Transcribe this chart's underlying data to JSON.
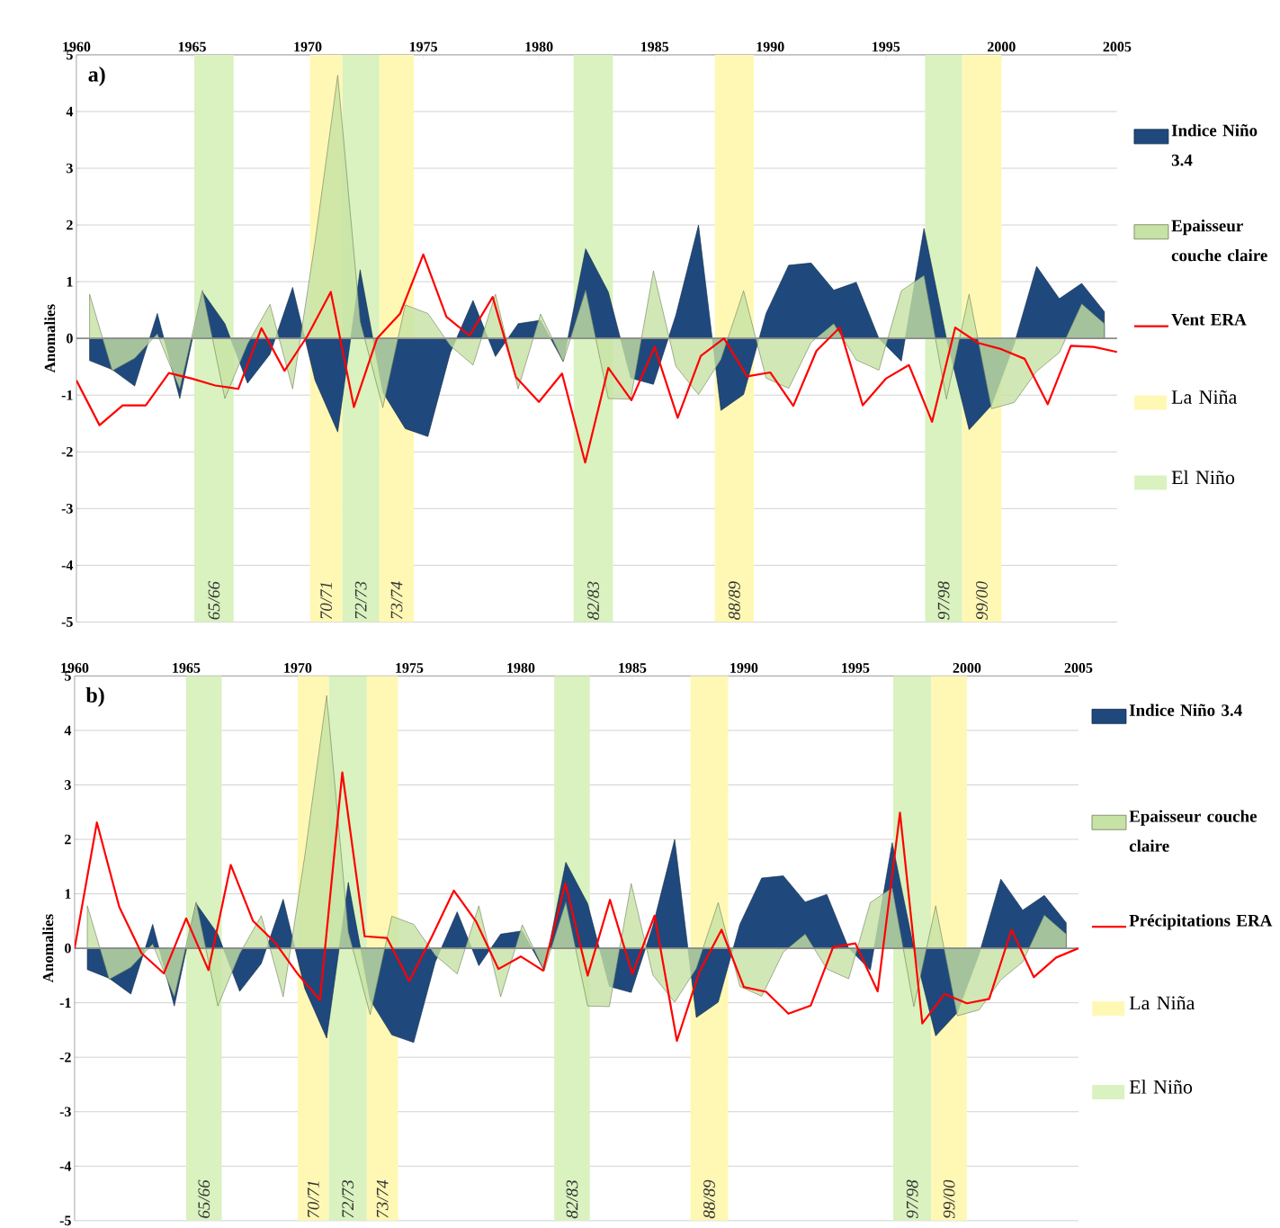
{
  "chart_data": [
    {
      "type": "area",
      "title": "a)",
      "ylabel": "Anomalies",
      "xlim": [
        1960,
        2005
      ],
      "xticks": [
        1960,
        1965,
        1970,
        1975,
        1980,
        1985,
        1990,
        1995,
        2000,
        2005
      ],
      "ylim": [
        -5,
        5
      ],
      "yticks": [
        -5,
        -4,
        -3,
        -2,
        -1,
        0,
        1,
        2,
        3,
        4,
        5
      ],
      "grid": "y",
      "legend": "right",
      "series": [
        {
          "name": "Indice Niño 3.4",
          "type": "area",
          "color": "#1f497d",
          "x": [
            1960.57,
            1961.55,
            1962.52,
            1963.5,
            1964.47,
            1965.45,
            1966.42,
            1967.4,
            1968.37,
            1969.35,
            1970.32,
            1971.3,
            1972.27,
            1973.25,
            1974.22,
            1975.2,
            1976.17,
            1977.15,
            1978.12,
            1979.1,
            1980.07,
            1981.05,
            1982.02,
            1983.0,
            1983.97,
            1984.95,
            1985.92,
            1986.9,
            1987.87,
            1988.85,
            1989.82,
            1990.8,
            1991.77,
            1992.75,
            1993.72,
            1994.7,
            1995.67,
            1996.65,
            1997.62,
            1998.6,
            1999.57,
            2000.55,
            2001.52,
            2002.5,
            2003.47,
            2004.45
          ],
          "values": [
            -0.39,
            -0.55,
            -0.84,
            0.44,
            -1.06,
            0.82,
            0.26,
            -0.79,
            -0.28,
            0.9,
            -0.74,
            -1.65,
            1.21,
            -0.95,
            -1.59,
            -1.73,
            -0.25,
            0.67,
            -0.32,
            0.26,
            0.32,
            -0.41,
            1.58,
            0.82,
            -0.7,
            -0.81,
            0.41,
            2.0,
            -1.27,
            -0.99,
            0.44,
            1.29,
            1.33,
            0.85,
            0.99,
            0,
            -0.4,
            1.94,
            0,
            -1.61,
            -1.18,
            -0.1,
            1.27,
            0.7,
            0.97,
            0.47
          ]
        },
        {
          "name": "Epaisseur couche claire",
          "type": "area",
          "color": "#c6e2a4",
          "x": [
            1960.57,
            1961.55,
            1962.52,
            1963.5,
            1964.47,
            1965.45,
            1966.42,
            1967.4,
            1968.37,
            1969.35,
            1970.32,
            1971.3,
            1972.27,
            1973.25,
            1974.22,
            1975.2,
            1976.17,
            1977.15,
            1978.12,
            1979.1,
            1980.07,
            1981.05,
            1982.02,
            1983.0,
            1983.97,
            1984.95,
            1985.92,
            1986.9,
            1987.87,
            1988.85,
            1989.82,
            1990.8,
            1991.77,
            1992.75,
            1993.72,
            1994.7,
            1995.67,
            1996.65,
            1997.62,
            1998.6,
            1999.57,
            2000.55,
            2001.52,
            2002.5,
            2003.47,
            2004.45
          ],
          "values": [
            0.78,
            -0.57,
            -0.35,
            0.08,
            -0.89,
            0.85,
            -1.06,
            -0.1,
            0.6,
            -0.89,
            1.7,
            4.64,
            0.3,
            -1.22,
            0.59,
            0.44,
            -0.13,
            -0.47,
            0.78,
            -0.89,
            0.43,
            -0.41,
            0.85,
            -1.06,
            -1.07,
            1.19,
            -0.49,
            -0.99,
            -0.37,
            0.84,
            -0.7,
            -0.88,
            -0.07,
            0.26,
            -0.38,
            -0.56,
            0.84,
            1.11,
            -1.07,
            0.78,
            -1.24,
            -1.13,
            -0.58,
            -0.25,
            0.61,
            0.26
          ]
        },
        {
          "name": "Vent ERA",
          "type": "line",
          "color": "#ff0000",
          "x": [
            1960,
            1961,
            1962,
            1963,
            1964,
            1965,
            1966,
            1967,
            1968,
            1969,
            1970,
            1971,
            1972,
            1973,
            1974,
            1975,
            1976,
            1977,
            1978,
            1979,
            1980,
            1981,
            1982,
            1983,
            1984,
            1985,
            1986,
            1987,
            1988,
            1989,
            1990,
            1991,
            1992,
            1993,
            1994,
            1995,
            1996,
            1997,
            1998,
            1999,
            2000,
            2001,
            2002,
            2003,
            2004,
            2005
          ],
          "values": [
            -0.74,
            -1.53,
            -1.18,
            -1.18,
            -0.61,
            -0.71,
            -0.83,
            -0.89,
            0.18,
            -0.57,
            0.05,
            0.82,
            -1.21,
            0,
            0.44,
            1.48,
            0.38,
            0.05,
            0.73,
            -0.68,
            -1.12,
            -0.62,
            -2.19,
            -0.52,
            -1.09,
            -0.15,
            -1.4,
            -0.31,
            0,
            -0.67,
            -0.6,
            -1.19,
            -0.22,
            0.19,
            -1.18,
            -0.71,
            -0.47,
            -1.47,
            0.19,
            -0.08,
            -0.19,
            -0.36,
            -1.16,
            -0.13,
            -0.15,
            -0.24
          ]
        }
      ],
      "bands": [
        {
          "axis": "x",
          "from": 1965.1,
          "to": 1966.8,
          "label": "65/66",
          "color": "#d9f2bf"
        },
        {
          "axis": "x",
          "from": 1970.1,
          "to": 1971.5,
          "label": "70/71",
          "color": "#fff8b5"
        },
        {
          "axis": "x",
          "from": 1971.5,
          "to": 1973.1,
          "label": "72/73",
          "color": "#d9f2bf"
        },
        {
          "axis": "x",
          "from": 1973.1,
          "to": 1974.6,
          "label": "73/74",
          "color": "#fff8b5"
        },
        {
          "axis": "x",
          "from": 1981.5,
          "to": 1983.2,
          "label": "82/83",
          "color": "#d9f2bf"
        },
        {
          "axis": "x",
          "from": 1987.6,
          "to": 1989.3,
          "label": "88/89",
          "color": "#fff8b5"
        },
        {
          "axis": "x",
          "from": 1996.7,
          "to": 1998.3,
          "label": "97/98",
          "color": "#d9f2bf"
        },
        {
          "axis": "x",
          "from": 1998.3,
          "to": 2000.0,
          "label": "99/00",
          "color": "#fff8b5"
        }
      ],
      "ref_lines": [
        {
          "axis": "y",
          "value": 0,
          "color": "#8c8c8c"
        }
      ],
      "annotations": [
        "La Niña",
        "El Niño"
      ]
    },
    {
      "type": "area",
      "title": "b)",
      "ylabel": "Anomalies",
      "xlim": [
        1960,
        2005
      ],
      "xticks": [
        1960,
        1965,
        1970,
        1975,
        1980,
        1985,
        1990,
        1995,
        2000,
        2005
      ],
      "ylim": [
        -5,
        5
      ],
      "yticks": [
        -5,
        -4,
        -3,
        -2,
        -1,
        0,
        1,
        2,
        3,
        4,
        5
      ],
      "grid": "y",
      "legend": "right",
      "series": [
        {
          "name": "Indice Niño 3.4",
          "type": "area",
          "color": "#1f497d",
          "x": [
            1960.57,
            1961.55,
            1962.52,
            1963.5,
            1964.47,
            1965.45,
            1966.42,
            1967.4,
            1968.37,
            1969.35,
            1970.32,
            1971.3,
            1972.27,
            1973.25,
            1974.22,
            1975.2,
            1976.17,
            1977.15,
            1978.12,
            1979.1,
            1980.07,
            1981.05,
            1982.02,
            1983.0,
            1983.97,
            1984.95,
            1985.92,
            1986.9,
            1987.87,
            1988.85,
            1989.82,
            1990.8,
            1991.77,
            1992.75,
            1993.72,
            1994.7,
            1995.67,
            1996.65,
            1997.62,
            1998.6,
            1999.57,
            2000.55,
            2001.52,
            2002.5,
            2003.47,
            2004.45
          ],
          "values": [
            -0.39,
            -0.55,
            -0.84,
            0.44,
            -1.06,
            0.82,
            0.26,
            -0.79,
            -0.28,
            0.9,
            -0.74,
            -1.65,
            1.21,
            -0.95,
            -1.59,
            -1.73,
            -0.25,
            0.67,
            -0.32,
            0.26,
            0.32,
            -0.41,
            1.58,
            0.82,
            -0.7,
            -0.81,
            0.41,
            2.0,
            -1.27,
            -0.99,
            0.44,
            1.29,
            1.33,
            0.85,
            0.99,
            0,
            -0.4,
            1.94,
            0,
            -1.61,
            -1.18,
            -0.1,
            1.27,
            0.7,
            0.97,
            0.47
          ]
        },
        {
          "name": "Epaisseur couche claire",
          "type": "area",
          "color": "#c6e2a4",
          "x": [
            1960.57,
            1961.55,
            1962.52,
            1963.5,
            1964.47,
            1965.45,
            1966.42,
            1967.4,
            1968.37,
            1969.35,
            1970.32,
            1971.3,
            1972.27,
            1973.25,
            1974.22,
            1975.2,
            1976.17,
            1977.15,
            1978.12,
            1979.1,
            1980.07,
            1981.05,
            1982.02,
            1983.0,
            1983.97,
            1984.95,
            1985.92,
            1986.9,
            1987.87,
            1988.85,
            1989.82,
            1990.8,
            1991.77,
            1992.75,
            1993.72,
            1994.7,
            1995.67,
            1996.65,
            1997.62,
            1998.6,
            1999.57,
            2000.55,
            2001.52,
            2002.5,
            2003.47,
            2004.45
          ],
          "values": [
            0.78,
            -0.57,
            -0.35,
            0.08,
            -0.89,
            0.85,
            -1.06,
            -0.1,
            0.6,
            -0.89,
            1.7,
            4.64,
            0.3,
            -1.22,
            0.59,
            0.44,
            -0.13,
            -0.47,
            0.78,
            -0.89,
            0.43,
            -0.41,
            0.85,
            -1.06,
            -1.07,
            1.19,
            -0.49,
            -0.99,
            -0.37,
            0.84,
            -0.7,
            -0.88,
            -0.07,
            0.26,
            -0.38,
            -0.56,
            0.84,
            1.11,
            -1.07,
            0.78,
            -1.24,
            -1.13,
            -0.58,
            -0.25,
            0.61,
            0.26
          ]
        },
        {
          "name": "Précipitations ERA",
          "type": "line",
          "color": "#ff0000",
          "x": [
            1960,
            1961,
            1962,
            1963,
            1964,
            1965,
            1966,
            1967,
            1968,
            1969,
            1970,
            1971,
            1972,
            1973,
            1974,
            1975,
            1976,
            1977,
            1978,
            1979,
            1980,
            1981,
            1982,
            1983,
            1984,
            1985,
            1986,
            1987,
            1988,
            1989,
            1990,
            1991,
            1992,
            1993,
            1994,
            1995,
            1996,
            1997,
            1998,
            1999,
            2000,
            2001,
            2002,
            2003,
            2004,
            2005
          ],
          "values": [
            0,
            2.31,
            0.76,
            -0.09,
            -0.46,
            0.55,
            -0.4,
            1.53,
            0.5,
            0.1,
            -0.47,
            -0.95,
            3.23,
            0.22,
            0.19,
            -0.6,
            0.2,
            1.06,
            0.49,
            -0.38,
            -0.15,
            -0.41,
            1.19,
            -0.5,
            0.89,
            -0.47,
            0.6,
            -1.7,
            -0.44,
            0.34,
            -0.71,
            -0.8,
            -1.2,
            -1.05,
            0.02,
            0.09,
            -0.79,
            2.49,
            -1.38,
            -0.84,
            -1.01,
            -0.93,
            0.34,
            -0.53,
            -0.17,
            0
          ]
        }
      ],
      "bands": [
        {
          "axis": "x",
          "from": 1965.0,
          "to": 1966.6,
          "label": "65/66",
          "color": "#d9f2bf"
        },
        {
          "axis": "x",
          "from": 1970.0,
          "to": 1971.4,
          "label": "70/71",
          "color": "#fff8b5"
        },
        {
          "axis": "x",
          "from": 1971.4,
          "to": 1973.1,
          "label": "72/73",
          "color": "#d9f2bf"
        },
        {
          "axis": "x",
          "from": 1973.1,
          "to": 1974.5,
          "label": "73/74",
          "color": "#fff8b5"
        },
        {
          "axis": "x",
          "from": 1981.5,
          "to": 1983.1,
          "label": "82/83",
          "color": "#d9f2bf"
        },
        {
          "axis": "x",
          "from": 1987.6,
          "to": 1989.3,
          "label": "88/89",
          "color": "#fff8b5"
        },
        {
          "axis": "x",
          "from": 1996.7,
          "to": 1998.4,
          "label": "97/98",
          "color": "#d9f2bf"
        },
        {
          "axis": "x",
          "from": 1998.4,
          "to": 2000.0,
          "label": "99/00",
          "color": "#fff8b5"
        }
      ],
      "ref_lines": [
        {
          "axis": "y",
          "value": 0,
          "color": "#8c8c8c"
        }
      ],
      "annotations": [
        "La Niña",
        "El Niño"
      ]
    }
  ]
}
